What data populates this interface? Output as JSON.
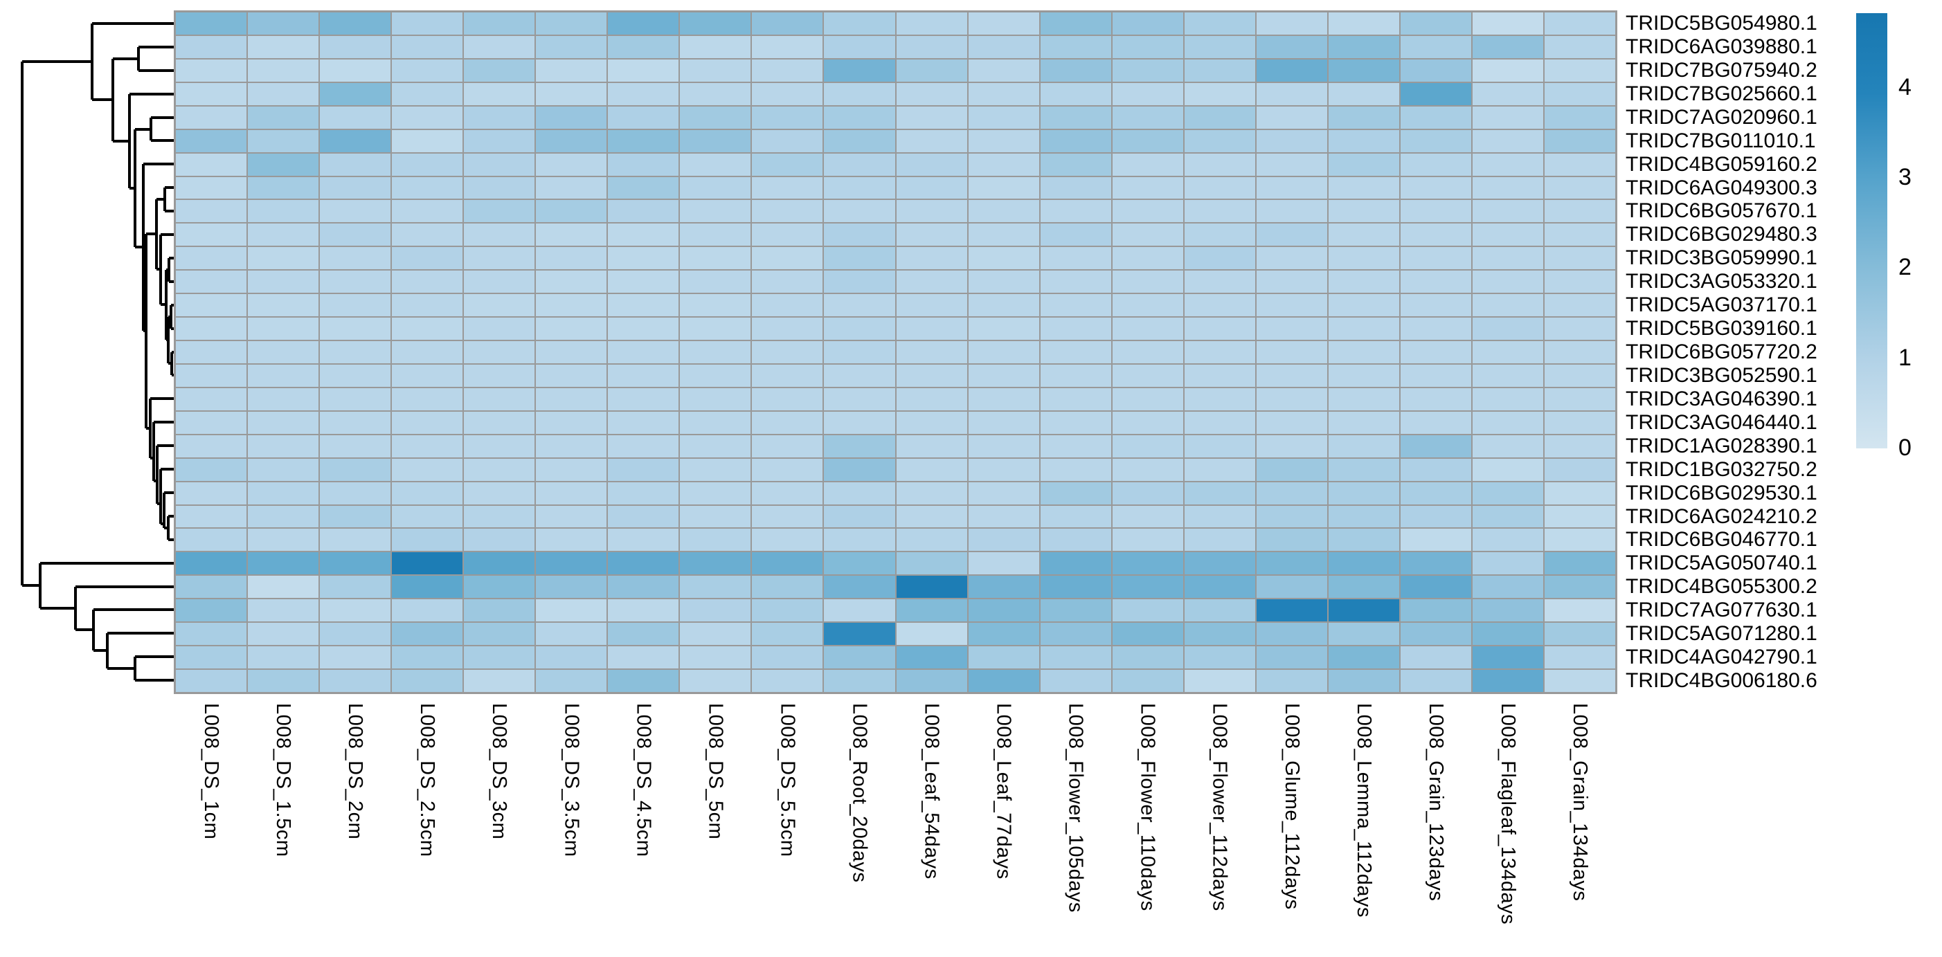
{
  "chart_data": {
    "type": "heatmap",
    "title": "",
    "legend_position": "right",
    "grid_line_color": "#999999",
    "dendrogram_line_color": "#000000",
    "value_range": [
      0,
      4.9
    ],
    "x_labels": [
      "L008_DS_1cm",
      "L008_DS_1.5cm",
      "L008_DS_2cm",
      "L008_DS_2.5cm",
      "L008_DS_3cm",
      "L008_DS_3.5cm",
      "L008_DS_4.5cm",
      "L008_DS_5cm",
      "L008_DS_5.5cm",
      "L008_Root_20days",
      "L008_Leaf_54days",
      "L008_Leaf_77days",
      "L008_Flower_105days",
      "L008_Flower_110days",
      "L008_Flower_112days",
      "L008_Glume_112days",
      "L008_Lemma_112days",
      "L008_Grain_123days",
      "L008_Flagleaf_134days",
      "L008_Grain_134days"
    ],
    "y_labels": [
      "TRIDC5BG054980.1",
      "TRIDC6AG039880.1",
      "TRIDC7BG075940.2",
      "TRIDC7BG025660.1",
      "TRIDC7AG020960.1",
      "TRIDC7BG011010.1",
      "TRIDC4BG059160.2",
      "TRIDC6AG049300.3",
      "TRIDC6BG057670.1",
      "TRIDC6BG029480.3",
      "TRIDC3BG059990.1",
      "TRIDC3AG053320.1",
      "TRIDC5AG037170.1",
      "TRIDC5BG039160.1",
      "TRIDC6BG057720.2",
      "TRIDC3BG052590.1",
      "TRIDC3AG046390.1",
      "TRIDC3AG046440.1",
      "TRIDC1AG028390.1",
      "TRIDC1BG032750.2",
      "TRIDC6BG029530.1",
      "TRIDC6AG024210.2",
      "TRIDC6BG046770.1",
      "TRIDC5AG050740.1",
      "TRIDC4BG055300.2",
      "TRIDC7AG077630.1",
      "TRIDC5AG071280.1",
      "TRIDC4AG042790.1",
      "TRIDC4BG006180.6"
    ],
    "values": [
      [
        2.2,
        1.8,
        2.3,
        1.1,
        1.5,
        1.4,
        2.5,
        2.2,
        1.8,
        1.2,
        0.9,
        0.8,
        1.9,
        1.6,
        1.2,
        0.8,
        0.7,
        1.5,
        0.5,
        0.9
      ],
      [
        1.0,
        0.7,
        1.0,
        1.0,
        0.8,
        1.2,
        1.4,
        0.7,
        0.7,
        1.1,
        1.0,
        1.0,
        1.3,
        1.3,
        1.2,
        1.8,
        2.0,
        1.2,
        1.8,
        0.9
      ],
      [
        0.7,
        0.7,
        0.6,
        0.9,
        1.4,
        0.7,
        0.6,
        0.8,
        0.8,
        2.4,
        1.4,
        0.8,
        1.7,
        1.3,
        1.2,
        2.6,
        2.3,
        1.6,
        0.5,
        0.7
      ],
      [
        0.7,
        0.8,
        2.1,
        0.9,
        0.7,
        0.7,
        0.8,
        0.8,
        0.8,
        0.9,
        0.8,
        0.8,
        0.9,
        0.8,
        0.7,
        0.8,
        0.8,
        2.9,
        0.8,
        0.9
      ],
      [
        0.8,
        1.4,
        0.9,
        0.8,
        1.1,
        1.6,
        1.1,
        1.4,
        1.2,
        1.3,
        0.8,
        0.9,
        1.4,
        1.2,
        1.4,
        0.8,
        1.4,
        1.2,
        0.8,
        1.3
      ],
      [
        1.8,
        1.2,
        2.4,
        0.6,
        1.1,
        1.8,
        1.9,
        1.7,
        1.0,
        1.5,
        0.8,
        0.8,
        1.7,
        1.5,
        1.2,
        1.0,
        1.1,
        1.2,
        0.8,
        1.5
      ],
      [
        0.7,
        1.9,
        1.0,
        1.0,
        1.0,
        0.8,
        1.1,
        0.8,
        1.2,
        1.0,
        1.0,
        0.8,
        1.4,
        0.8,
        0.8,
        0.8,
        1.2,
        0.9,
        0.8,
        0.8
      ],
      [
        0.7,
        1.3,
        1.0,
        0.9,
        1.0,
        0.8,
        1.4,
        0.9,
        0.8,
        0.9,
        0.9,
        0.7,
        1.0,
        0.8,
        0.8,
        0.8,
        0.8,
        0.8,
        0.8,
        0.8
      ],
      [
        0.8,
        0.9,
        0.8,
        0.8,
        1.2,
        1.3,
        1.0,
        0.8,
        0.8,
        0.8,
        0.8,
        0.8,
        0.8,
        0.8,
        0.8,
        0.8,
        0.8,
        0.8,
        0.8,
        0.8
      ],
      [
        0.7,
        0.8,
        1.0,
        0.8,
        0.8,
        0.7,
        0.7,
        0.8,
        0.8,
        1.1,
        0.8,
        0.8,
        1.1,
        0.8,
        0.9,
        1.1,
        0.8,
        0.8,
        0.8,
        0.8
      ],
      [
        0.8,
        0.7,
        0.8,
        1.0,
        0.8,
        0.8,
        0.7,
        0.7,
        0.7,
        1.2,
        0.8,
        0.7,
        0.8,
        0.8,
        1.1,
        0.8,
        0.8,
        0.8,
        0.8,
        0.8
      ],
      [
        0.8,
        0.8,
        0.8,
        0.8,
        0.8,
        0.7,
        0.7,
        0.8,
        0.8,
        1.1,
        0.8,
        0.8,
        0.8,
        0.8,
        0.8,
        0.8,
        0.8,
        0.8,
        0.8,
        0.8
      ],
      [
        0.7,
        0.7,
        0.8,
        0.8,
        0.7,
        0.7,
        0.7,
        0.7,
        0.8,
        0.8,
        0.8,
        0.8,
        0.8,
        0.8,
        0.8,
        0.8,
        0.8,
        0.8,
        0.8,
        0.8
      ],
      [
        0.7,
        0.7,
        0.7,
        0.7,
        0.8,
        0.7,
        0.7,
        0.7,
        0.8,
        0.9,
        0.8,
        0.7,
        0.8,
        0.8,
        0.8,
        0.8,
        0.8,
        0.8,
        1.0,
        0.8
      ],
      [
        0.8,
        0.8,
        0.8,
        0.8,
        0.8,
        0.8,
        0.8,
        0.8,
        0.8,
        0.9,
        0.8,
        0.8,
        0.8,
        0.8,
        0.8,
        0.8,
        0.8,
        0.8,
        0.8,
        0.8
      ],
      [
        0.8,
        0.8,
        0.8,
        0.8,
        0.8,
        0.8,
        0.8,
        0.8,
        0.8,
        0.8,
        0.8,
        0.8,
        0.8,
        0.8,
        0.8,
        0.8,
        0.8,
        0.8,
        0.8,
        0.8
      ],
      [
        0.8,
        0.8,
        0.8,
        0.8,
        0.8,
        0.8,
        0.8,
        0.8,
        0.8,
        0.8,
        0.8,
        0.8,
        0.8,
        0.8,
        0.8,
        0.8,
        0.8,
        0.8,
        0.8,
        0.8
      ],
      [
        0.8,
        0.8,
        0.8,
        0.8,
        0.8,
        0.8,
        0.8,
        0.8,
        0.8,
        0.8,
        0.8,
        0.8,
        0.8,
        0.8,
        0.8,
        0.8,
        0.8,
        0.8,
        0.8,
        0.8
      ],
      [
        0.8,
        0.8,
        0.8,
        0.8,
        0.8,
        0.8,
        0.8,
        0.8,
        0.8,
        1.5,
        0.8,
        0.8,
        0.8,
        0.9,
        0.9,
        0.8,
        0.9,
        1.8,
        0.8,
        0.8
      ],
      [
        1.2,
        0.9,
        1.2,
        0.8,
        0.8,
        0.8,
        1.1,
        0.8,
        0.8,
        1.8,
        0.8,
        0.8,
        0.8,
        0.8,
        0.8,
        1.5,
        1.2,
        1.1,
        0.6,
        1.0
      ],
      [
        0.8,
        0.9,
        0.9,
        0.9,
        0.8,
        0.8,
        0.9,
        0.8,
        0.8,
        0.9,
        0.8,
        0.8,
        1.4,
        1.1,
        1.2,
        1.2,
        1.2,
        1.2,
        1.3,
        0.6
      ],
      [
        0.8,
        0.9,
        1.2,
        0.9,
        0.9,
        0.8,
        1.0,
        0.8,
        0.8,
        1.1,
        0.8,
        0.8,
        0.9,
        0.8,
        0.9,
        1.2,
        1.2,
        1.1,
        1.2,
        0.6
      ],
      [
        0.9,
        0.8,
        0.8,
        1.1,
        1.0,
        0.8,
        0.8,
        0.9,
        0.8,
        0.9,
        0.9,
        1.0,
        1.0,
        0.8,
        0.9,
        1.4,
        1.3,
        0.6,
        0.9,
        0.6
      ],
      [
        2.9,
        2.7,
        2.7,
        4.5,
        2.9,
        2.8,
        2.8,
        2.6,
        2.6,
        2.1,
        1.5,
        0.8,
        2.6,
        2.5,
        2.4,
        2.3,
        2.5,
        2.4,
        1.1,
        2.2
      ],
      [
        1.5,
        0.5,
        1.2,
        2.9,
        2.1,
        1.8,
        1.8,
        1.2,
        1.4,
        2.4,
        4.5,
        2.4,
        2.6,
        2.5,
        2.5,
        1.7,
        2.1,
        2.8,
        1.6,
        1.9
      ],
      [
        1.9,
        0.8,
        0.7,
        0.9,
        1.5,
        0.6,
        0.7,
        1.0,
        1.2,
        0.8,
        2.1,
        2.2,
        1.9,
        1.2,
        1.3,
        4.2,
        4.3,
        1.9,
        1.8,
        0.5
      ],
      [
        1.2,
        0.8,
        1.1,
        1.8,
        1.5,
        0.9,
        1.5,
        0.8,
        1.2,
        3.8,
        0.6,
        2.1,
        1.8,
        2.2,
        1.9,
        1.8,
        1.5,
        1.8,
        2.2,
        1.4
      ],
      [
        1.2,
        0.9,
        0.8,
        1.3,
        1.2,
        1.1,
        0.8,
        0.8,
        1.1,
        1.7,
        2.5,
        1.3,
        1.2,
        1.4,
        1.3,
        1.7,
        2.2,
        1.0,
        2.8,
        0.9
      ],
      [
        1.1,
        1.3,
        1.1,
        1.3,
        0.7,
        1.2,
        1.9,
        0.8,
        0.9,
        1.3,
        1.8,
        2.5,
        1.1,
        1.3,
        0.6,
        1.2,
        1.7,
        1.1,
        2.8,
        0.7
      ]
    ],
    "colorbar": {
      "tick_labels": [
        "4",
        "3",
        "2",
        "1",
        "0"
      ],
      "tick_values": [
        4,
        3,
        2,
        1,
        0
      ],
      "colorscale": [
        {
          "value": 0,
          "color": "#d3e5f0"
        },
        {
          "value": 1,
          "color": "#b2d2e7"
        },
        {
          "value": 2,
          "color": "#87bdd9"
        },
        {
          "value": 3,
          "color": "#57a4cc"
        },
        {
          "value": 4,
          "color": "#2484bb"
        },
        {
          "value": 4.9,
          "color": "#1777b0"
        }
      ]
    },
    "row_dendrogram_segments": [
      [
        32,
        89,
        32,
        846
      ],
      [
        32,
        89,
        133,
        89
      ],
      [
        32,
        846,
        58,
        846
      ],
      [
        133,
        34,
        133,
        144
      ],
      [
        133,
        34,
        253,
        34
      ],
      [
        133,
        144,
        163,
        144
      ],
      [
        163,
        85,
        163,
        204
      ],
      [
        163,
        85,
        200,
        85
      ],
      [
        163,
        204,
        187,
        204
      ],
      [
        200,
        68,
        200,
        102
      ],
      [
        200,
        68,
        253,
        68
      ],
      [
        200,
        102,
        253,
        102
      ],
      [
        187,
        136,
        187,
        272
      ],
      [
        187,
        136,
        253,
        136
      ],
      [
        187,
        272,
        195,
        272
      ],
      [
        195,
        187,
        195,
        357
      ],
      [
        195,
        187,
        218,
        187
      ],
      [
        195,
        357,
        207,
        357
      ],
      [
        218,
        170,
        218,
        203
      ],
      [
        218,
        170,
        253,
        170
      ],
      [
        218,
        203,
        253,
        203
      ],
      [
        207,
        237,
        207,
        478
      ],
      [
        207,
        237,
        253,
        237
      ],
      [
        207,
        478,
        211,
        478
      ],
      [
        211,
        338,
        211,
        619
      ],
      [
        211,
        338,
        226,
        338
      ],
      [
        211,
        619,
        217,
        619
      ],
      [
        226,
        288,
        226,
        389
      ],
      [
        226,
        288,
        238,
        288
      ],
      [
        226,
        389,
        232,
        389
      ],
      [
        238,
        271,
        238,
        305
      ],
      [
        238,
        271,
        253,
        271
      ],
      [
        238,
        305,
        253,
        305
      ],
      [
        232,
        339,
        232,
        440
      ],
      [
        232,
        339,
        253,
        339
      ],
      [
        232,
        440,
        240,
        440
      ],
      [
        240,
        390,
        240,
        491
      ],
      [
        240,
        390,
        244,
        390
      ],
      [
        240,
        491,
        243,
        491
      ],
      [
        244,
        373,
        244,
        407
      ],
      [
        244,
        373,
        253,
        373
      ],
      [
        244,
        407,
        253,
        407
      ],
      [
        243,
        458,
        243,
        525
      ],
      [
        243,
        458,
        247,
        458
      ],
      [
        243,
        525,
        248,
        525
      ],
      [
        247,
        441,
        247,
        475
      ],
      [
        247,
        441,
        253,
        441
      ],
      [
        247,
        475,
        253,
        475
      ],
      [
        248,
        509,
        248,
        542
      ],
      [
        248,
        509,
        253,
        509
      ],
      [
        248,
        542,
        253,
        542
      ],
      [
        217,
        576,
        217,
        662
      ],
      [
        217,
        576,
        253,
        576
      ],
      [
        217,
        662,
        222,
        662
      ],
      [
        222,
        610,
        222,
        695
      ],
      [
        222,
        610,
        253,
        610
      ],
      [
        222,
        695,
        227,
        695
      ],
      [
        227,
        644,
        227,
        728
      ],
      [
        227,
        644,
        253,
        644
      ],
      [
        227,
        728,
        232,
        728
      ],
      [
        232,
        678,
        232,
        757
      ],
      [
        232,
        678,
        253,
        678
      ],
      [
        232,
        757,
        237,
        757
      ],
      [
        237,
        712,
        237,
        763
      ],
      [
        237,
        712,
        253,
        712
      ],
      [
        237,
        763,
        243,
        763
      ],
      [
        243,
        746,
        243,
        780
      ],
      [
        243,
        746,
        253,
        746
      ],
      [
        243,
        780,
        253,
        780
      ],
      [
        58,
        814,
        58,
        879
      ],
      [
        58,
        814,
        253,
        814
      ],
      [
        58,
        879,
        109,
        879
      ],
      [
        109,
        848,
        109,
        910
      ],
      [
        109,
        848,
        253,
        848
      ],
      [
        109,
        910,
        135,
        910
      ],
      [
        135,
        881,
        135,
        940
      ],
      [
        135,
        881,
        253,
        881
      ],
      [
        135,
        940,
        155,
        940
      ],
      [
        155,
        915,
        155,
        966
      ],
      [
        155,
        915,
        253,
        915
      ],
      [
        155,
        966,
        195,
        966
      ],
      [
        195,
        949,
        195,
        983
      ],
      [
        195,
        949,
        253,
        949
      ],
      [
        195,
        983,
        253,
        983
      ]
    ]
  }
}
